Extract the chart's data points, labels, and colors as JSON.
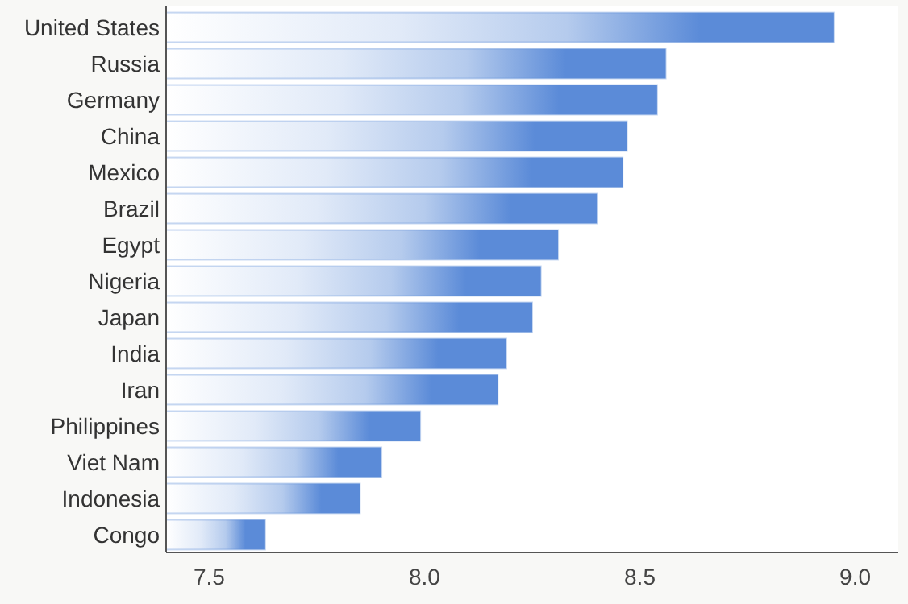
{
  "chart_data": {
    "type": "bar",
    "orientation": "horizontal",
    "categories": [
      "United States",
      "Russia",
      "Germany",
      "China",
      "Mexico",
      "Brazil",
      "Egypt",
      "Nigeria",
      "Japan",
      "India",
      "Iran",
      "Philippines",
      "Viet Nam",
      "Indonesia",
      "Congo"
    ],
    "values": [
      8.95,
      8.56,
      8.54,
      8.47,
      8.46,
      8.4,
      8.31,
      8.27,
      8.25,
      8.19,
      8.17,
      7.99,
      7.9,
      7.85,
      7.63
    ],
    "color": "#5b8bd8",
    "xlim": [
      7.4,
      9.1
    ],
    "xticks": [
      {
        "value": 7.5,
        "label": "7.5"
      },
      {
        "value": 8,
        "label": "8.0"
      },
      {
        "value": 8.5,
        "label": "8.5"
      },
      {
        "value": 9,
        "label": "9.0"
      }
    ],
    "grid": false
  }
}
